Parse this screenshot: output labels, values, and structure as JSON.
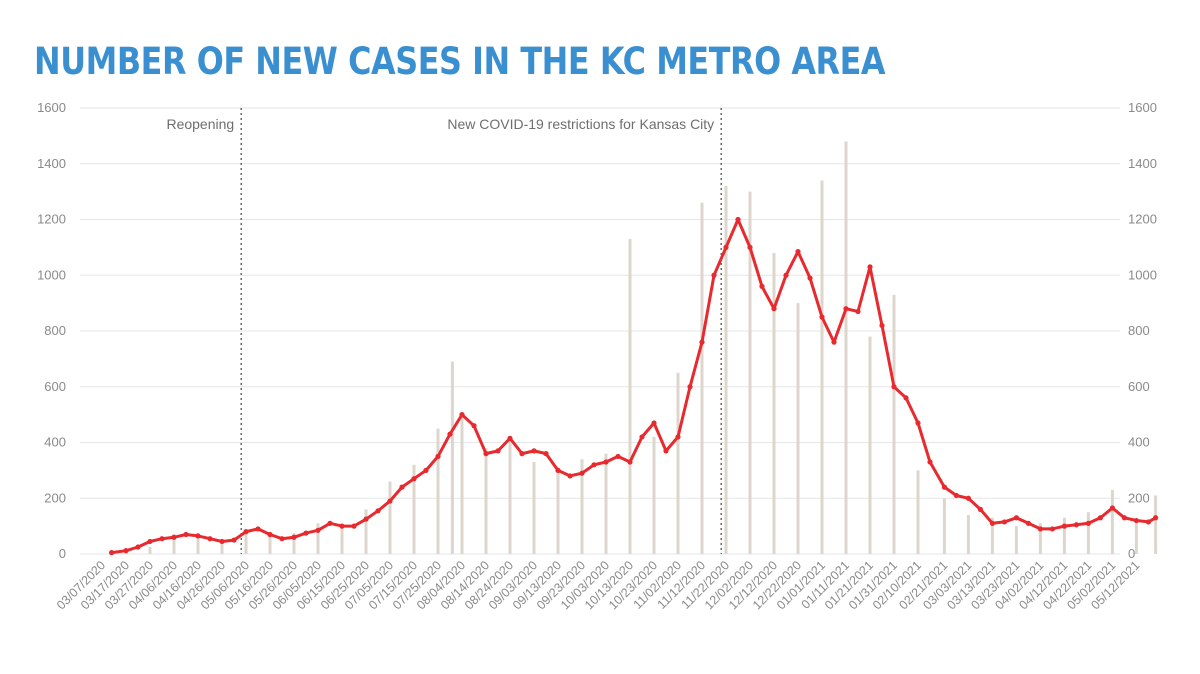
{
  "chart_data": {
    "type": "bar",
    "title": "NUMBER OF NEW CASES IN THE KC METRO AREA",
    "xlabel": "",
    "ylabel": "",
    "ylim": [
      0,
      1600
    ],
    "yticks": [
      0,
      200,
      400,
      600,
      800,
      1000,
      1200,
      1400,
      1600
    ],
    "x_start": "03/07/2020",
    "x_tick_labels": [
      "03/07/2020",
      "03/17/2020",
      "03/27/2020",
      "04/06/2020",
      "04/16/2020",
      "04/26/2020",
      "05/06/2020",
      "05/16/2020",
      "05/26/2020",
      "06/05/2020",
      "06/15/2020",
      "06/25/2020",
      "07/05/2020",
      "07/15/2020",
      "07/25/2020",
      "08/04/2020",
      "08/14/2020",
      "08/24/2020",
      "09/03/2020",
      "09/13/2020",
      "09/23/2020",
      "10/03/2020",
      "10/13/2020",
      "10/23/2020",
      "11/02/2020",
      "11/12/2020",
      "11/22/2020",
      "12/02/2020",
      "12/12/2020",
      "12/22/2020",
      "01/01/2021",
      "01/11/2021",
      "01/21/2021",
      "01/31/2021",
      "02/10/2021",
      "02/21/2021",
      "03/03/2021",
      "03/13/2021",
      "03/23/2021",
      "04/02/2021",
      "04/12/2021",
      "04/22/2021",
      "05/02/2021",
      "05/12/2021"
    ],
    "grid": true,
    "legend": "none",
    "annotations": [
      {
        "label": "Reopening",
        "x": "05/04/2020"
      },
      {
        "label": "New COVID-19 restrictions for Kansas City",
        "x": "11/20/2020"
      }
    ],
    "series": [
      {
        "type": "bar",
        "color": "#ddd6cc",
        "points": [
          [
            "03/17/2020",
            5
          ],
          [
            "03/27/2020",
            25
          ],
          [
            "04/06/2020",
            70
          ],
          [
            "04/16/2020",
            70
          ],
          [
            "04/26/2020",
            45
          ],
          [
            "05/06/2020",
            90
          ],
          [
            "05/16/2020",
            65
          ],
          [
            "05/26/2020",
            75
          ],
          [
            "06/05/2020",
            110
          ],
          [
            "06/15/2020",
            105
          ],
          [
            "06/25/2020",
            160
          ],
          [
            "07/05/2020",
            260
          ],
          [
            "07/15/2020",
            320
          ],
          [
            "07/25/2020",
            450
          ],
          [
            "07/31/2020",
            690
          ],
          [
            "08/04/2020",
            500
          ],
          [
            "08/14/2020",
            380
          ],
          [
            "08/24/2020",
            420
          ],
          [
            "09/03/2020",
            330
          ],
          [
            "09/13/2020",
            300
          ],
          [
            "09/23/2020",
            340
          ],
          [
            "10/03/2020",
            360
          ],
          [
            "10/13/2020",
            1130
          ],
          [
            "10/23/2020",
            420
          ],
          [
            "11/02/2020",
            650
          ],
          [
            "11/12/2020",
            1260
          ],
          [
            "11/22/2020",
            1320
          ],
          [
            "12/02/2020",
            1300
          ],
          [
            "12/12/2020",
            1080
          ],
          [
            "12/22/2020",
            900
          ],
          [
            "01/01/2021",
            1340
          ],
          [
            "01/11/2021",
            1480
          ],
          [
            "01/21/2021",
            780
          ],
          [
            "01/31/2021",
            930
          ],
          [
            "02/10/2021",
            300
          ],
          [
            "02/21/2021",
            200
          ],
          [
            "03/03/2021",
            140
          ],
          [
            "03/13/2021",
            130
          ],
          [
            "03/23/2021",
            100
          ],
          [
            "04/02/2021",
            110
          ],
          [
            "04/12/2021",
            130
          ],
          [
            "04/22/2021",
            150
          ],
          [
            "05/02/2021",
            230
          ],
          [
            "05/12/2021",
            120
          ],
          [
            "05/20/2021",
            210
          ]
        ]
      },
      {
        "type": "line",
        "color": "#e8292e",
        "points": [
          [
            "03/11/2020",
            5
          ],
          [
            "03/17/2020",
            12
          ],
          [
            "03/22/2020",
            25
          ],
          [
            "03/27/2020",
            45
          ],
          [
            "04/01/2020",
            55
          ],
          [
            "04/06/2020",
            60
          ],
          [
            "04/11/2020",
            70
          ],
          [
            "04/16/2020",
            65
          ],
          [
            "04/21/2020",
            55
          ],
          [
            "04/26/2020",
            45
          ],
          [
            "05/01/2020",
            50
          ],
          [
            "05/06/2020",
            80
          ],
          [
            "05/11/2020",
            90
          ],
          [
            "05/16/2020",
            70
          ],
          [
            "05/21/2020",
            55
          ],
          [
            "05/26/2020",
            60
          ],
          [
            "05/31/2020",
            75
          ],
          [
            "06/05/2020",
            85
          ],
          [
            "06/10/2020",
            110
          ],
          [
            "06/15/2020",
            100
          ],
          [
            "06/20/2020",
            100
          ],
          [
            "06/25/2020",
            125
          ],
          [
            "06/30/2020",
            155
          ],
          [
            "07/05/2020",
            190
          ],
          [
            "07/10/2020",
            240
          ],
          [
            "07/15/2020",
            270
          ],
          [
            "07/20/2020",
            300
          ],
          [
            "07/25/2020",
            350
          ],
          [
            "07/30/2020",
            430
          ],
          [
            "08/04/2020",
            500
          ],
          [
            "08/09/2020",
            460
          ],
          [
            "08/14/2020",
            360
          ],
          [
            "08/19/2020",
            370
          ],
          [
            "08/24/2020",
            415
          ],
          [
            "08/29/2020",
            360
          ],
          [
            "09/03/2020",
            370
          ],
          [
            "09/08/2020",
            360
          ],
          [
            "09/13/2020",
            300
          ],
          [
            "09/18/2020",
            280
          ],
          [
            "09/23/2020",
            290
          ],
          [
            "09/28/2020",
            320
          ],
          [
            "10/03/2020",
            330
          ],
          [
            "10/08/2020",
            350
          ],
          [
            "10/13/2020",
            330
          ],
          [
            "10/18/2020",
            420
          ],
          [
            "10/23/2020",
            470
          ],
          [
            "10/28/2020",
            370
          ],
          [
            "11/02/2020",
            420
          ],
          [
            "11/07/2020",
            600
          ],
          [
            "11/12/2020",
            760
          ],
          [
            "11/17/2020",
            1000
          ],
          [
            "11/22/2020",
            1100
          ],
          [
            "11/27/2020",
            1200
          ],
          [
            "12/02/2020",
            1100
          ],
          [
            "12/07/2020",
            960
          ],
          [
            "12/12/2020",
            880
          ],
          [
            "12/17/2020",
            1000
          ],
          [
            "12/22/2020",
            1085
          ],
          [
            "12/27/2020",
            990
          ],
          [
            "01/01/2021",
            850
          ],
          [
            "01/06/2021",
            760
          ],
          [
            "01/11/2021",
            880
          ],
          [
            "01/16/2021",
            870
          ],
          [
            "01/21/2021",
            1030
          ],
          [
            "01/26/2021",
            820
          ],
          [
            "01/31/2021",
            600
          ],
          [
            "02/05/2021",
            560
          ],
          [
            "02/10/2021",
            470
          ],
          [
            "02/15/2021",
            330
          ],
          [
            "02/21/2021",
            240
          ],
          [
            "02/26/2021",
            210
          ],
          [
            "03/03/2021",
            200
          ],
          [
            "03/08/2021",
            160
          ],
          [
            "03/13/2021",
            110
          ],
          [
            "03/18/2021",
            115
          ],
          [
            "03/23/2021",
            130
          ],
          [
            "03/28/2021",
            110
          ],
          [
            "04/02/2021",
            90
          ],
          [
            "04/07/2021",
            90
          ],
          [
            "04/12/2021",
            100
          ],
          [
            "04/17/2021",
            105
          ],
          [
            "04/22/2021",
            110
          ],
          [
            "04/27/2021",
            130
          ],
          [
            "05/02/2021",
            165
          ],
          [
            "05/07/2021",
            130
          ],
          [
            "05/12/2021",
            120
          ],
          [
            "05/17/2021",
            115
          ],
          [
            "05/20/2021",
            130
          ]
        ]
      }
    ]
  }
}
